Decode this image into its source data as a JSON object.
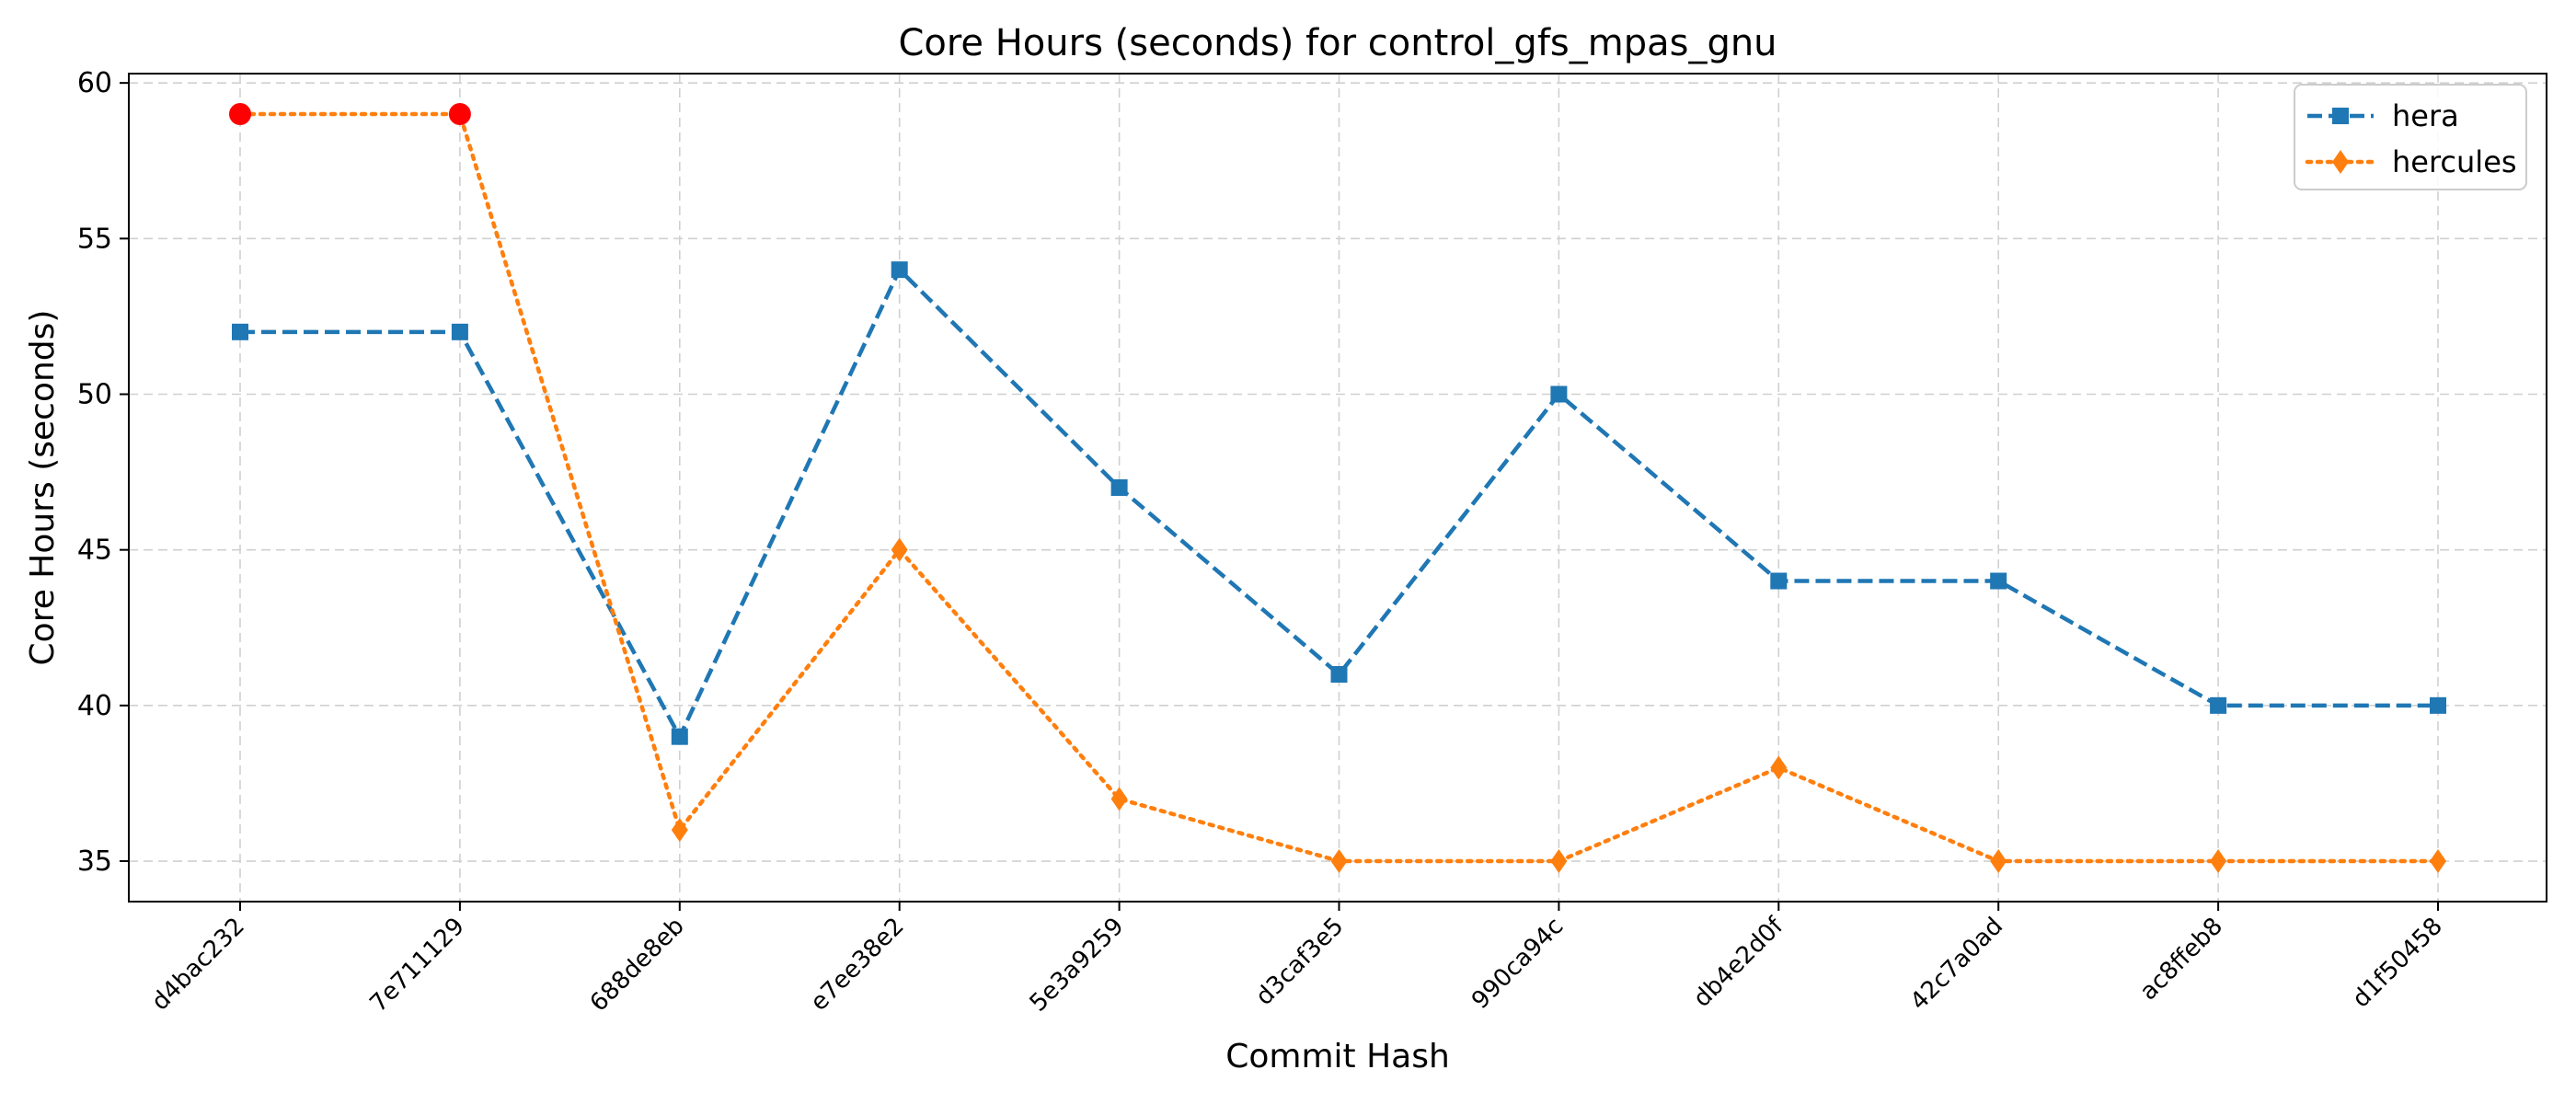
{
  "chart_data": {
    "type": "line",
    "title": "Core Hours (seconds) for control_gfs_mpas_gnu",
    "xlabel": "Commit Hash",
    "ylabel": "Core Hours (seconds)",
    "categories": [
      "d4bac232",
      "7e711129",
      "688de8eb",
      "e7ee38e2",
      "5e3a9259",
      "d3caf3e5",
      "990ca94c",
      "db4e2d0f",
      "42c7a0ad",
      "ac8ffeb8",
      "d1f50458"
    ],
    "ylim": [
      33.7,
      60.3
    ],
    "yticks": [
      35,
      40,
      45,
      50,
      55,
      60
    ],
    "grid": true,
    "legend_position": "top-right",
    "series": [
      {
        "name": "hera",
        "values": [
          52,
          52,
          39,
          54,
          47,
          41,
          50,
          44,
          44,
          40,
          40
        ],
        "color": "#1f77b4",
        "line_style": "dashed",
        "marker": "square"
      },
      {
        "name": "hercules",
        "values": [
          59,
          59,
          36,
          45,
          37,
          35,
          35,
          38,
          35,
          35,
          35
        ],
        "color": "#ff7f0e",
        "line_style": "dotted",
        "marker": "diamond",
        "highlighted_points": [
          0,
          1
        ],
        "highlight_color": "#ff0000"
      }
    ]
  }
}
